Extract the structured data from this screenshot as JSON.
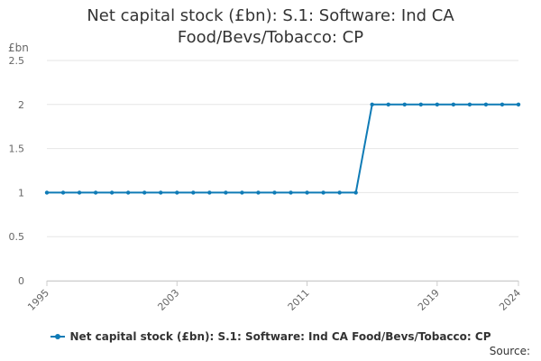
{
  "chart_data": {
    "type": "line",
    "title": "Net capital stock (£bn): S.1: Software: Ind CA Food/Bevs/Tobacco: CP",
    "ylabel": "£bn",
    "xlabel": "",
    "x": [
      1995,
      1996,
      1997,
      1998,
      1999,
      2000,
      2001,
      2002,
      2003,
      2004,
      2005,
      2006,
      2007,
      2008,
      2009,
      2010,
      2011,
      2012,
      2013,
      2014,
      2015,
      2016,
      2017,
      2018,
      2019,
      2020,
      2021,
      2022,
      2023,
      2024
    ],
    "series": [
      {
        "name": "Net capital stock (£bn): S.1: Software: Ind CA Food/Bevs/Tobacco: CP",
        "color": "#0f7bb6",
        "values": [
          1,
          1,
          1,
          1,
          1,
          1,
          1,
          1,
          1,
          1,
          1,
          1,
          1,
          1,
          1,
          1,
          1,
          1,
          1,
          1,
          2,
          2,
          2,
          2,
          2,
          2,
          2,
          2,
          2,
          2
        ]
      }
    ],
    "xticks": [
      1995,
      2003,
      2011,
      2019,
      2024
    ],
    "xtick_labels": [
      "1995",
      "2003",
      "2011",
      "2019",
      "2024"
    ],
    "yticks": [
      0,
      0.5,
      1,
      1.5,
      2,
      2.5
    ],
    "ytick_labels": [
      "0",
      "0.5",
      "1",
      "1.5",
      "2",
      "2.5"
    ],
    "xlim": [
      1995,
      2024
    ],
    "ylim": [
      0,
      2.5
    ],
    "grid": true,
    "legend_position": "bottom"
  },
  "source_label": "Source:"
}
